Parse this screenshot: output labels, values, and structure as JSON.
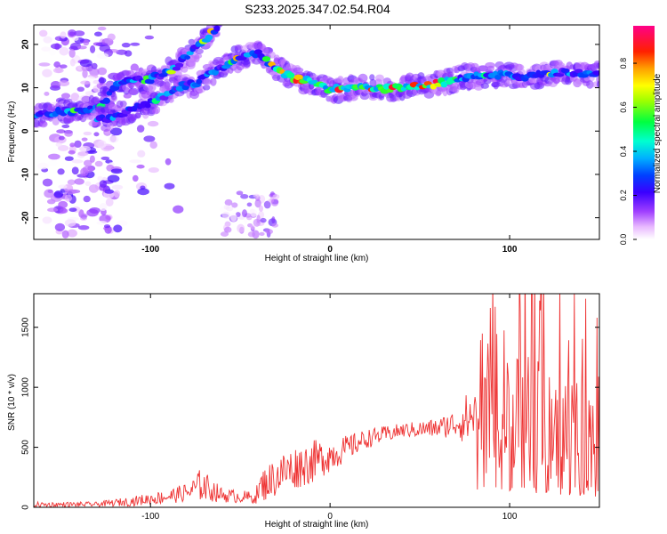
{
  "title": "S233.2025.347.02.54.R04",
  "chart_data": [
    {
      "type": "heatmap",
      "title": "S233.2025.347.02.54.R04",
      "xlabel": "Height of straight line (km)",
      "ylabel": "Frequency (Hz)",
      "xlim": [
        -165,
        150
      ],
      "ylim": [
        -25,
        24.5
      ],
      "xticks": [
        -100,
        0,
        100
      ],
      "yticks": [
        -20,
        -10,
        0,
        10,
        20
      ],
      "colorbar": {
        "label": "Normalized spectral amplitude",
        "range": [
          0.0,
          0.97
        ],
        "ticks": [
          "0.0",
          "0.2",
          "0.4",
          "0.6",
          "0.8"
        ],
        "tick_values": [
          0.0,
          0.2,
          0.4,
          0.6,
          0.8
        ]
      },
      "ridges": [
        {
          "name": "main-track",
          "points": [
            [
              -165,
              3.5
            ],
            [
              -150,
              4.5
            ],
            [
              -135,
              5
            ],
            [
              -128,
              5.5
            ],
            [
              -118,
              11
            ],
            [
              -100,
              12
            ],
            [
              -88,
              14
            ],
            [
              -80,
              17
            ],
            [
              -70,
              21
            ],
            [
              -62,
              24
            ]
          ]
        },
        {
          "name": "lower-track",
          "points": [
            [
              -130,
              2.5
            ],
            [
              -120,
              3.5
            ],
            [
              -100,
              6.5
            ],
            [
              -85,
              10
            ],
            [
              -75,
              11
            ],
            [
              -65,
              13.5
            ],
            [
              -55,
              16
            ],
            [
              -48,
              17.5
            ],
            [
              -40,
              18
            ],
            [
              -32,
              15
            ],
            [
              -20,
              12
            ],
            [
              -10,
              11.5
            ],
            [
              0,
              9.5
            ],
            [
              15,
              10
            ],
            [
              30,
              9.8
            ],
            [
              45,
              10.2
            ],
            [
              60,
              11
            ],
            [
              75,
              12.5
            ],
            [
              90,
              13
            ],
            [
              110,
              12.5
            ],
            [
              130,
              13.5
            ],
            [
              150,
              13
            ]
          ]
        }
      ]
    },
    {
      "type": "line",
      "xlabel": "Height of straight line (km)",
      "ylabel": "SNR (10 * v/v)",
      "xlim": [
        -165,
        150
      ],
      "ylim": [
        0,
        1780
      ],
      "xticks": [
        -100,
        0,
        100
      ],
      "yticks": [
        0,
        500,
        1000,
        1500
      ],
      "series_color": "#ee3333",
      "envelope": [
        {
          "x": -165,
          "base": 20,
          "amp": 25
        },
        {
          "x": -130,
          "base": 25,
          "amp": 20
        },
        {
          "x": -110,
          "base": 50,
          "amp": 40
        },
        {
          "x": -90,
          "base": 90,
          "amp": 60
        },
        {
          "x": -78,
          "base": 130,
          "amp": 80
        },
        {
          "x": -72,
          "base": 190,
          "amp": 140
        },
        {
          "x": -60,
          "base": 100,
          "amp": 60
        },
        {
          "x": -42,
          "base": 80,
          "amp": 50
        },
        {
          "x": -38,
          "base": 180,
          "amp": 140
        },
        {
          "x": -25,
          "base": 300,
          "amp": 180
        },
        {
          "x": -10,
          "base": 380,
          "amp": 180
        },
        {
          "x": 5,
          "base": 460,
          "amp": 120
        },
        {
          "x": 20,
          "base": 570,
          "amp": 80
        },
        {
          "x": 40,
          "base": 640,
          "amp": 60
        },
        {
          "x": 60,
          "base": 660,
          "amp": 80
        },
        {
          "x": 70,
          "base": 700,
          "amp": 120
        },
        {
          "x": 80,
          "base": 760,
          "amp": 280
        },
        {
          "x": 90,
          "base": 650,
          "amp": 500
        },
        {
          "x": 105,
          "base": 700,
          "amp": 600
        },
        {
          "x": 120,
          "base": 720,
          "amp": 650
        },
        {
          "x": 135,
          "base": 640,
          "amp": 550
        },
        {
          "x": 150,
          "base": 600,
          "amp": 500
        }
      ]
    }
  ]
}
